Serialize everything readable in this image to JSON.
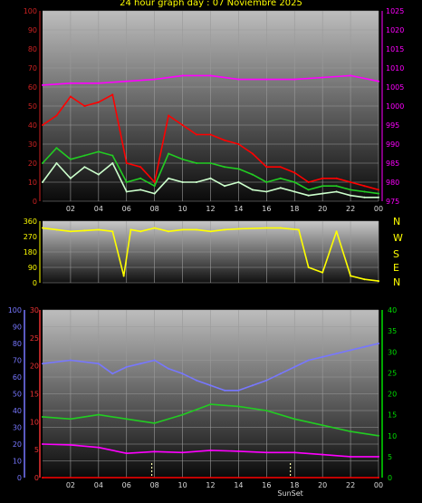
{
  "title": "24 hour graph day : 07 Noviembre 2025",
  "compass": [
    "N",
    "W",
    "S",
    "E",
    "N"
  ],
  "colors": {
    "yellow": "#ffff00",
    "magenta": "#ff00ff",
    "red": "#ff0000",
    "green": "#22cc22",
    "mint": "#ccffcc",
    "blue": "#7777ff",
    "grid": "#9a9a9a",
    "green_axis": "#00dd00"
  },
  "x_ticks": [
    "02",
    "04",
    "06",
    "08",
    "10",
    "12",
    "14",
    "16",
    "18",
    "20",
    "22",
    "00"
  ],
  "chart_data": [
    {
      "type": "line",
      "y_left": {
        "ticks": [
          0,
          10,
          20,
          30,
          40,
          50,
          60,
          70,
          80,
          90,
          100
        ],
        "range": [
          0,
          100
        ]
      },
      "y_right": {
        "ticks": [
          975,
          980,
          985,
          990,
          995,
          1000,
          1005,
          1010,
          1015,
          1020,
          1025
        ],
        "range": [
          975,
          1025
        ]
      },
      "series": [
        {
          "color": "magenta",
          "axis": "right",
          "x": [
            0,
            2,
            4,
            6,
            8,
            10,
            12,
            14,
            16,
            18,
            20,
            22,
            24
          ],
          "values": [
            1005.5,
            1006,
            1006,
            1006.5,
            1007,
            1008,
            1008,
            1007,
            1007,
            1007,
            1007.5,
            1008,
            1006.5
          ]
        },
        {
          "color": "red",
          "axis": "left",
          "x": [
            0,
            1,
            2,
            3,
            4,
            5,
            6,
            7,
            8,
            9,
            10,
            11,
            12,
            13,
            14,
            15,
            16,
            17,
            18,
            19,
            20,
            21,
            22,
            23,
            24
          ],
          "values": [
            40,
            45,
            55,
            50,
            52,
            56,
            20,
            18,
            10,
            45,
            40,
            35,
            35,
            32,
            30,
            25,
            18,
            18,
            15,
            10,
            12,
            12,
            10,
            8,
            6
          ]
        },
        {
          "color": "green",
          "axis": "left",
          "x": [
            0,
            1,
            2,
            3,
            4,
            5,
            6,
            7,
            8,
            9,
            10,
            11,
            12,
            13,
            14,
            15,
            16,
            17,
            18,
            19,
            20,
            21,
            22,
            23,
            24
          ],
          "values": [
            20,
            28,
            22,
            24,
            26,
            24,
            10,
            12,
            8,
            25,
            22,
            20,
            20,
            18,
            17,
            14,
            10,
            12,
            10,
            6,
            8,
            8,
            6,
            5,
            4
          ]
        },
        {
          "color": "mint",
          "axis": "left",
          "x": [
            0,
            1,
            2,
            3,
            4,
            5,
            6,
            7,
            8,
            9,
            10,
            11,
            12,
            13,
            14,
            15,
            16,
            17,
            18,
            19,
            20,
            21,
            22,
            23,
            24
          ],
          "values": [
            10,
            20,
            12,
            18,
            14,
            20,
            5,
            6,
            4,
            12,
            10,
            10,
            12,
            8,
            10,
            6,
            5,
            7,
            5,
            3,
            4,
            5,
            3,
            2,
            2
          ]
        }
      ]
    },
    {
      "type": "line",
      "y_left": {
        "ticks": [
          0,
          90,
          180,
          270,
          360
        ],
        "range": [
          0,
          360
        ]
      },
      "series": [
        {
          "color": "yellow",
          "x": [
            0,
            1,
            2,
            3,
            4,
            5,
            5.8,
            6.3,
            7,
            8,
            9,
            10,
            11,
            12,
            13,
            14,
            16,
            17,
            18.3,
            19,
            20,
            21,
            22,
            23,
            24
          ],
          "values": [
            320,
            310,
            300,
            305,
            310,
            300,
            40,
            310,
            300,
            320,
            300,
            310,
            310,
            300,
            310,
            315,
            320,
            320,
            310,
            90,
            60,
            300,
            40,
            20,
            10
          ]
        }
      ]
    },
    {
      "type": "line",
      "y_left": {
        "ticks": [
          0,
          10,
          20,
          30,
          40,
          50,
          60,
          70,
          80,
          90,
          100
        ],
        "range": [
          0,
          100
        ]
      },
      "y_left_inner": {
        "ticks": [
          0,
          5,
          10,
          15,
          20,
          25,
          30
        ],
        "range": [
          0,
          30
        ]
      },
      "y_right": {
        "ticks": [
          0,
          5,
          10,
          15,
          20,
          25,
          30,
          35,
          40
        ],
        "range": [
          0,
          40
        ]
      },
      "x_extra_label": "SunSet",
      "series": [
        {
          "color": "blue",
          "axis": "left",
          "x": [
            0,
            2,
            4,
            5,
            6,
            7,
            8,
            9,
            10,
            11,
            12,
            13,
            14,
            15,
            16,
            17,
            18,
            19,
            20,
            21,
            22,
            23,
            24
          ],
          "values": [
            68,
            70,
            68,
            62,
            66,
            68,
            70,
            65,
            62,
            58,
            55,
            52,
            52,
            55,
            58,
            62,
            66,
            70,
            72,
            74,
            76,
            78,
            80
          ]
        },
        {
          "color": "green",
          "axis": "right",
          "x": [
            0,
            2,
            4,
            6,
            8,
            10,
            12,
            14,
            16,
            18,
            20,
            22,
            24
          ],
          "values": [
            14.5,
            14,
            15,
            14,
            13,
            15,
            17.5,
            17,
            16,
            14,
            12.5,
            11,
            10
          ]
        },
        {
          "color": "magenta",
          "axis": "right",
          "x": [
            0,
            2,
            4,
            6,
            8,
            10,
            12,
            14,
            16,
            18,
            20,
            22,
            24
          ],
          "values": [
            8,
            7.8,
            7.2,
            5.8,
            6.2,
            6,
            6.5,
            6.3,
            6,
            6,
            5.5,
            5,
            5
          ]
        },
        {
          "color": "red",
          "axis": "right",
          "x": [
            0,
            24
          ],
          "values": [
            0,
            0
          ]
        }
      ]
    }
  ]
}
